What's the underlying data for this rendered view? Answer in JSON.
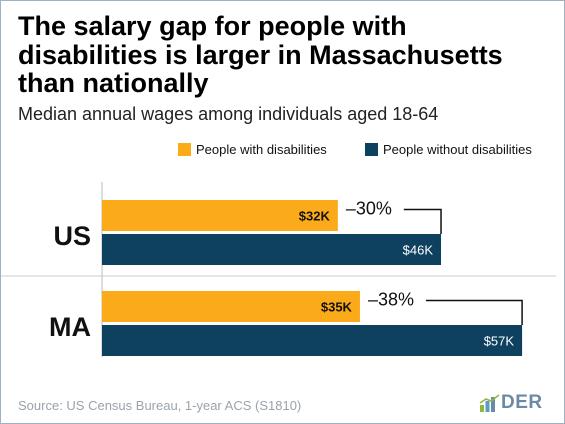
{
  "title": "The salary gap for people with disabilities is larger in Massachusetts than nationally",
  "subtitle": "Median annual wages among individuals aged 18-64",
  "source": "Source: US Census Bureau, 1-year ACS (S1810)",
  "logo": {
    "text": "DER",
    "icon": "bar-chart-icon"
  },
  "colors": {
    "with_disabilities": "#fbaa19",
    "without_disabilities": "#0e4060"
  },
  "chart_data": {
    "type": "bar",
    "orientation": "horizontal",
    "categories": [
      "US",
      "MA"
    ],
    "series": [
      {
        "name": "People with disabilities",
        "values": [
          32,
          35
        ],
        "labels": [
          "$32K",
          "$35K"
        ],
        "color": "#fbaa19"
      },
      {
        "name": "People without disabilities",
        "values": [
          46,
          57
        ],
        "labels": [
          "$46K",
          "$57K"
        ],
        "color": "#0e4060"
      }
    ],
    "gap_labels": [
      "–30%",
      "–38%"
    ],
    "unit": "$K",
    "xlim": [
      0,
      60
    ],
    "legend_position": "top-right",
    "grid": false
  }
}
